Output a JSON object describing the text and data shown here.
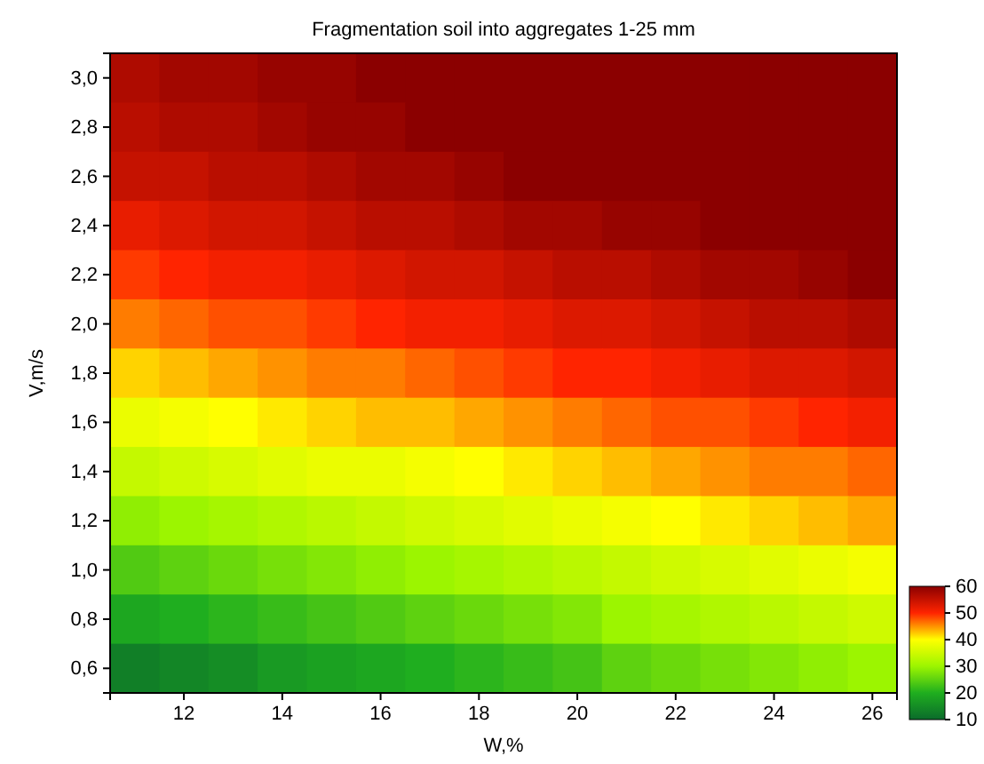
{
  "chart_data": {
    "type": "heatmap",
    "title": "Fragmentation soil into  aggregates 1-25 mm",
    "xlabel": "W,%",
    "ylabel": "V,m/s",
    "categories": [
      null,
      "12",
      null,
      "14",
      null,
      "16",
      null,
      "18",
      null,
      "20",
      null,
      "22",
      null,
      "24",
      null,
      "26"
    ],
    "y_categories": [
      "3,0",
      "2,8",
      "2,6",
      "2,4",
      "2,2",
      "2,0",
      "1,8",
      "1,6",
      "1,4",
      "1,2",
      "1,0",
      "0,8",
      "0,6"
    ],
    "clim": [
      10,
      60
    ],
    "cticks": [
      10,
      20,
      30,
      40,
      50,
      60
    ],
    "cells": [
      [
        57,
        58,
        58,
        59,
        59,
        60,
        60,
        60,
        60,
        60,
        60,
        60,
        60,
        60,
        60,
        60
      ],
      [
        56,
        57,
        57,
        58,
        59,
        59,
        60,
        60,
        60,
        60,
        60,
        60,
        60,
        60,
        60,
        60
      ],
      [
        55,
        55,
        56,
        56,
        57,
        58,
        58,
        59,
        60,
        60,
        60,
        60,
        60,
        60,
        60,
        60
      ],
      [
        52,
        53,
        54,
        54,
        55,
        56,
        56,
        57,
        58,
        58,
        59,
        59,
        60,
        60,
        60,
        60
      ],
      [
        49,
        50,
        51,
        51,
        52,
        53,
        54,
        54,
        55,
        56,
        56,
        57,
        58,
        58,
        59,
        60
      ],
      [
        46,
        47,
        48,
        48,
        49,
        50,
        51,
        51,
        52,
        53,
        53,
        54,
        55,
        56,
        56,
        57
      ],
      [
        42,
        43,
        44,
        45,
        46,
        46,
        47,
        48,
        49,
        50,
        50,
        51,
        52,
        53,
        53,
        54
      ],
      [
        38,
        39,
        40,
        41,
        42,
        43,
        43,
        44,
        45,
        46,
        47,
        48,
        48,
        49,
        50,
        51
      ],
      [
        34,
        35,
        36,
        37,
        38,
        38,
        39,
        40,
        41,
        42,
        43,
        44,
        45,
        46,
        46,
        47
      ],
      [
        29,
        30,
        31,
        32,
        33,
        34,
        35,
        36,
        37,
        38,
        39,
        40,
        41,
        42,
        43,
        44
      ],
      [
        24,
        25,
        26,
        27,
        28,
        29,
        30,
        31,
        32,
        33,
        34,
        35,
        36,
        37,
        38,
        39
      ],
      [
        19,
        20,
        21,
        22,
        23,
        24,
        25,
        26,
        27,
        28,
        30,
        31,
        32,
        33,
        34,
        35
      ],
      [
        13,
        14,
        15,
        17,
        18,
        19,
        20,
        21,
        22,
        23,
        25,
        26,
        27,
        28,
        29,
        30
      ]
    ]
  }
}
